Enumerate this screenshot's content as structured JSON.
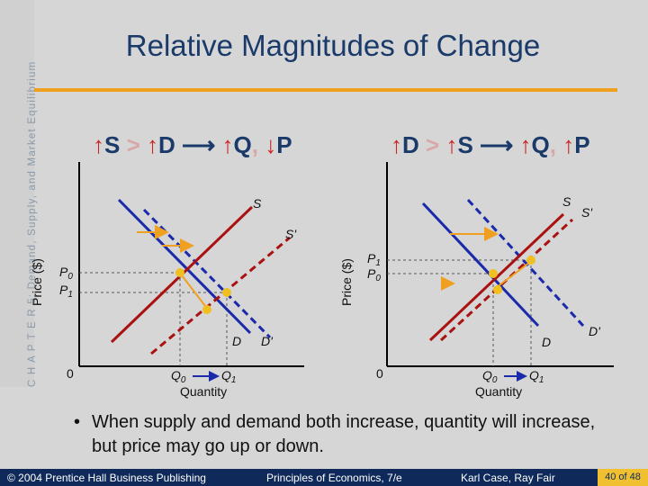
{
  "side_label": "C H A P T E R 5: Demand, Supply, and Market Equilibrium",
  "title": "Relative Magnitudes of Change",
  "left": {
    "eq": {
      "a": "S",
      "gt": ">",
      "b": "D",
      "c": "Q",
      "comma": ",",
      "d": "P"
    },
    "ylabel": "Price ($)",
    "xlabel": "Quantity",
    "origin": "0",
    "p0": "P",
    "p0_sub": "0",
    "p1": "P",
    "p1_sub": "1",
    "q0": "Q",
    "q0_sub": "0",
    "q1": "Q",
    "q1_sub": "1",
    "s": "S",
    "s2": "S'",
    "d": "D",
    "d2": "D'"
  },
  "right": {
    "eq": {
      "a": "D",
      "gt": ">",
      "b": "S",
      "c": "Q",
      "comma": ",",
      "d": "P"
    },
    "ylabel": "Price ($)",
    "xlabel": "Quantity",
    "origin": "0",
    "p1": "P",
    "p1_sub": "1",
    "p0": "P",
    "p0_sub": "0",
    "q0": "Q",
    "q0_sub": "0",
    "q1": "Q",
    "q1_sub": "1",
    "s": "S",
    "s2": "S'",
    "d": "D",
    "d2": "D'"
  },
  "bullet": "When supply and demand both increase, quantity will increase, but price may go up or down.",
  "footer": {
    "copyright": "© 2004 Prentice Hall Business Publishing",
    "book": "Principles of Economics, 7/e",
    "authors": "Karl Case, Ray Fair",
    "page": "40 of 48"
  },
  "colors": {
    "supply": "#aa1111",
    "demand": "#1a2aaa",
    "arrow": "#f0a020",
    "point": "#f0c020",
    "title": "#1a3a6a"
  }
}
